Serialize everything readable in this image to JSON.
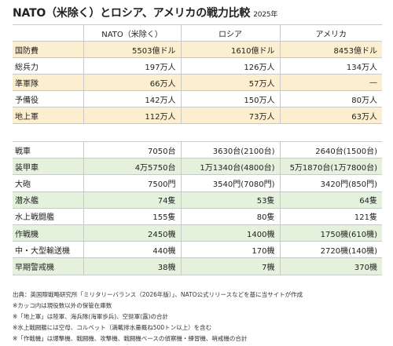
{
  "title": "NATO（米除く）とロシア、アメリカの戦力比較",
  "year": "2025年",
  "table1": {
    "headers": [
      "",
      "NATO（米除く）",
      "ロシア",
      "アメリカ"
    ],
    "rows": [
      {
        "label": "国防費",
        "values": [
          "5503億ドル",
          "1610億ドル",
          "8453億ドル"
        ],
        "highlight": true
      },
      {
        "label": "総兵力",
        "values": [
          "197万人",
          "126万人",
          "134万人"
        ],
        "highlight": false
      },
      {
        "label": "準軍隊",
        "values": [
          "66万人",
          "57万人",
          "—"
        ],
        "highlight": true
      },
      {
        "label": "予備役",
        "values": [
          "142万人",
          "150万人",
          "80万人"
        ],
        "highlight": false
      },
      {
        "label": "地上軍",
        "values": [
          "112万人",
          "73万人",
          "63万人"
        ],
        "highlight": true
      }
    ]
  },
  "table2": {
    "rows": [
      {
        "label": "戦車",
        "values": [
          "7050台",
          "3630台(2100台)",
          "2640台(1500台)"
        ],
        "highlight": false
      },
      {
        "label": "装甲車",
        "values": [
          "4万5750台",
          "1万1340台(4800台)",
          "5万1870台(1万7800台)"
        ],
        "highlight": true
      },
      {
        "label": "大砲",
        "values": [
          "7500門",
          "3540門(7080門)",
          "3420門(850門)"
        ],
        "highlight": false
      },
      {
        "label": "潜水艦",
        "values": [
          "74隻",
          "53隻",
          "64隻"
        ],
        "highlight": true
      },
      {
        "label": "水上戦闘艦",
        "values": [
          "155隻",
          "80隻",
          "121隻"
        ],
        "highlight": false
      },
      {
        "label": "作戦機",
        "values": [
          "2450機",
          "1400機",
          "1750機(610機)"
        ],
        "highlight": true
      },
      {
        "label": "中・大型輸送機",
        "values": [
          "440機",
          "170機",
          "2720機(140機)"
        ],
        "highlight": false
      },
      {
        "label": "早期警戒機",
        "values": [
          "38機",
          "7機",
          "370機"
        ],
        "highlight": true
      }
    ]
  },
  "notes": [
    "出典：英国際戦略研究所「ミリタリーバランス（2026年版）」、NATO公式リリースなどを基に当サイトが作成",
    "※カッコ内は現役数以外の保管在庫数",
    "※「地上軍」は陸軍、海兵隊(海軍歩兵)、空挺軍(露)の合計",
    "※水上戦闘艦には空母、コルベット（満載排水量概ね500トン以上）を含む",
    "※「作戦機」は爆撃機、戦闘機、攻撃機、戦闘機ベースの偵察機・練習機、哨戒機の合計"
  ],
  "colors": {
    "highlight_orange": "#fcefd0",
    "highlight_green": "#e4f1dc",
    "grid": "#c9c9c9"
  }
}
